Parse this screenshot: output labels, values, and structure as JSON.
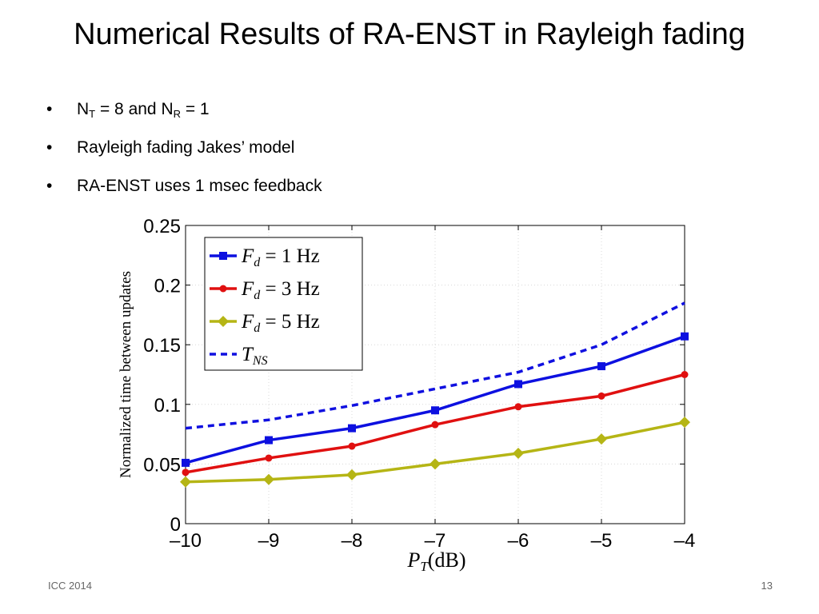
{
  "slide": {
    "title": "Numerical Results of RA-ENST in Rayleigh fading",
    "bullets": [
      {
        "main": "N",
        "sub1": "T",
        "mid": " = 8 and N",
        "sub2": "R",
        "end": " = 1"
      },
      {
        "text": "Rayleigh fading Jakes’ model"
      },
      {
        "text": "RA-ENST uses 1 msec feedback"
      }
    ],
    "bullet_glyph": "•",
    "footer_left": "ICC 2014",
    "page_number": "13"
  },
  "chart_data": {
    "type": "line",
    "ylabel": "Normalized time between updates",
    "xlabel": {
      "var": "P",
      "sub": "T",
      "unit": "(dB)"
    },
    "x": [
      -10,
      -9,
      -8,
      -7,
      -6,
      -5,
      -4
    ],
    "xlim": [
      -10,
      -4
    ],
    "ylim": [
      0,
      0.25
    ],
    "x_ticks": [
      "–10",
      "–9",
      "–8",
      "–7",
      "–6",
      "–5",
      "–4"
    ],
    "y_ticks": [
      {
        "value": 0,
        "label": "0"
      },
      {
        "value": 0.05,
        "label": "0.05"
      },
      {
        "value": 0.1,
        "label": "0.1"
      },
      {
        "value": 0.15,
        "label": "0.15"
      },
      {
        "value": 0.2,
        "label": "0.2"
      },
      {
        "value": 0.25,
        "label": "0.25"
      }
    ],
    "grid": true,
    "legend_position": "top-left",
    "series": [
      {
        "name": "F_d = 1 Hz",
        "label_main": "F",
        "label_sub": "d",
        "label_rest": " = 1 Hz",
        "color": "#0d10e0",
        "marker": "square",
        "style": "solid",
        "values": [
          0.051,
          0.07,
          0.08,
          0.095,
          0.117,
          0.132,
          0.157
        ]
      },
      {
        "name": "F_d = 3 Hz",
        "label_main": "F",
        "label_sub": "d",
        "label_rest": " = 3 Hz",
        "color": "#e01010",
        "marker": "circle",
        "style": "solid",
        "values": [
          0.043,
          0.055,
          0.065,
          0.083,
          0.098,
          0.107,
          0.125
        ]
      },
      {
        "name": "F_d = 5 Hz",
        "label_main": "F",
        "label_sub": "d",
        "label_rest": " = 5 Hz",
        "color": "#b5b515",
        "marker": "diamond",
        "style": "solid",
        "values": [
          0.035,
          0.037,
          0.041,
          0.05,
          0.059,
          0.071,
          0.085
        ]
      },
      {
        "name": "T_NS",
        "label_main": "T",
        "label_sub": "NS",
        "label_rest": "",
        "color": "#1010e0",
        "marker": "none",
        "style": "dashed",
        "values": [
          0.08,
          0.087,
          0.099,
          0.113,
          0.127,
          0.15,
          0.185
        ]
      }
    ]
  }
}
